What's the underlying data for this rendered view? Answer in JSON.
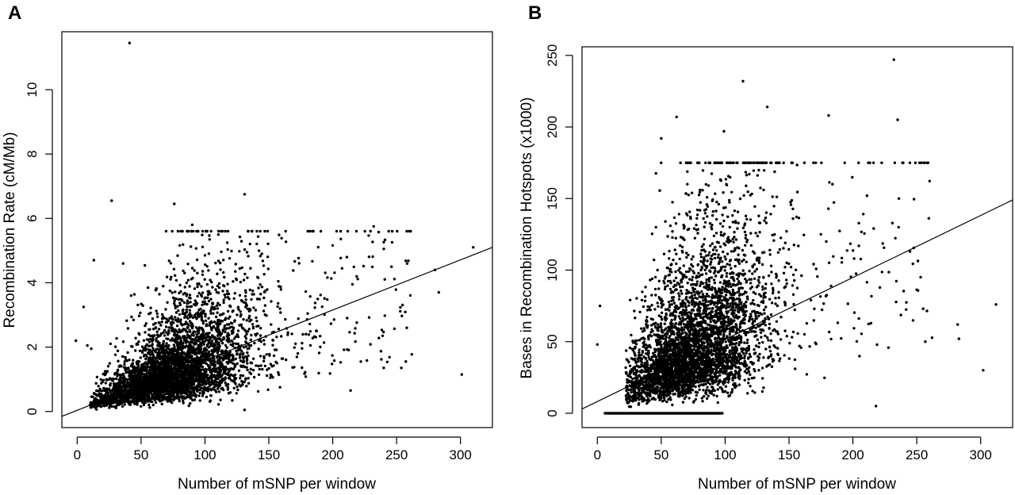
{
  "chart_data": [
    {
      "type": "scatter",
      "panel_label": "A",
      "xlabel": "Number of mSNP per window",
      "ylabel": "Recombination Rate (cM/Mb)",
      "xticks": [
        0,
        50,
        100,
        150,
        200,
        250,
        300
      ],
      "yticks": [
        0,
        2,
        4,
        6,
        8,
        10
      ],
      "xlim": [
        -12,
        325
      ],
      "ylim": [
        -0.5,
        11.8
      ],
      "trend_line": {
        "x": [
          -12,
          325
        ],
        "y": [
          -0.15,
          5.1
        ]
      },
      "outliers": [
        {
          "x": 41,
          "y": 11.45
        },
        {
          "x": 27,
          "y": 6.55
        },
        {
          "x": 76,
          "y": 6.45
        },
        {
          "x": 131,
          "y": 6.75
        },
        {
          "x": 90,
          "y": 5.8
        },
        {
          "x": 13,
          "y": 4.7
        },
        {
          "x": 36,
          "y": 4.6
        },
        {
          "x": 5,
          "y": 3.25
        },
        {
          "x": -1,
          "y": 2.2
        },
        {
          "x": 8,
          "y": 2.05
        },
        {
          "x": 11,
          "y": 1.95
        },
        {
          "x": 310,
          "y": 5.1
        },
        {
          "x": 280,
          "y": 4.4
        },
        {
          "x": 283,
          "y": 3.7
        },
        {
          "x": 301,
          "y": 1.15
        },
        {
          "x": 232,
          "y": 5.75
        },
        {
          "x": 240,
          "y": 5.05
        },
        {
          "x": 246,
          "y": 4.5
        },
        {
          "x": 258,
          "y": 2.6
        },
        {
          "x": 222,
          "y": 1.55
        },
        {
          "x": 214,
          "y": 0.65
        },
        {
          "x": 131,
          "y": 0.05
        }
      ],
      "cloud": {
        "n": 4200,
        "x_center": 75,
        "x_spread": 32,
        "x_min": 10,
        "x_max": 262,
        "y_intercept": 0.1,
        "y_slope": 0.0155,
        "y_min": 0.02,
        "y_max": 5.6
      }
    },
    {
      "type": "scatter",
      "panel_label": "B",
      "xlabel": "Number of mSNP per window",
      "ylabel": "Bases in Recombination Hotspots (x1000)",
      "xticks": [
        0,
        50,
        100,
        150,
        200,
        250,
        300
      ],
      "yticks": [
        0,
        50,
        100,
        150,
        200,
        250
      ],
      "xlim": [
        -12,
        325
      ],
      "ylim": [
        -10,
        256
      ],
      "trend_line": {
        "x": [
          -12,
          325
        ],
        "y": [
          3,
          149
        ]
      },
      "outliers": [
        {
          "x": 232,
          "y": 247
        },
        {
          "x": 114,
          "y": 232
        },
        {
          "x": 133,
          "y": 214
        },
        {
          "x": 235,
          "y": 205
        },
        {
          "x": 62,
          "y": 207
        },
        {
          "x": 50,
          "y": 192
        },
        {
          "x": 99,
          "y": 197
        },
        {
          "x": 181,
          "y": 208
        },
        {
          "x": 162,
          "y": 175
        },
        {
          "x": 2,
          "y": 75
        },
        {
          "x": 0,
          "y": 48
        },
        {
          "x": 312,
          "y": 76
        },
        {
          "x": 302,
          "y": 30
        },
        {
          "x": 282,
          "y": 62
        },
        {
          "x": 283,
          "y": 52
        },
        {
          "x": 253,
          "y": 95
        },
        {
          "x": 218,
          "y": 5
        },
        {
          "x": 255,
          "y": 73
        },
        {
          "x": 236,
          "y": 150
        },
        {
          "x": 211,
          "y": 152
        },
        {
          "x": 184,
          "y": 160
        }
      ],
      "cloud": {
        "n": 4200,
        "x_center": 75,
        "x_spread": 30,
        "x_min": 22,
        "x_max": 262,
        "y_intercept": 8,
        "y_slope": 0.5,
        "y_min": 1,
        "y_max": 175
      },
      "zero_run": {
        "y": 0,
        "x_min": 6,
        "x_max": 98
      }
    }
  ]
}
